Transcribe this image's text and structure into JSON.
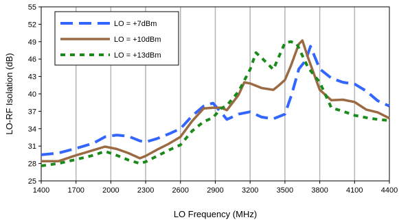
{
  "chart_data": {
    "type": "line",
    "xlabel": "LO Frequency (MHz)",
    "ylabel": "LO-RF Isolation (dB)",
    "xlim": [
      1400,
      4400
    ],
    "ylim": [
      25,
      55
    ],
    "xticks": [
      "1400",
      "1700",
      "2000",
      "2300",
      "2600",
      "2900",
      "3200",
      "3500",
      "3800",
      "4100",
      "4400"
    ],
    "yticks": [
      "25",
      "28",
      "31",
      "34",
      "37",
      "40",
      "43",
      "46",
      "49",
      "52",
      "55"
    ],
    "grid": "vertical",
    "legend_position": "top-left",
    "series": [
      {
        "name": "LO = +7dBm",
        "color": "#3366ff",
        "style": "long-dash",
        "x": [
          1400,
          1550,
          1700,
          1850,
          1950,
          2050,
          2150,
          2250,
          2300,
          2400,
          2500,
          2600,
          2700,
          2800,
          2880,
          2950,
          3000,
          3100,
          3200,
          3300,
          3400,
          3500,
          3560,
          3620,
          3680,
          3720,
          3800,
          3900,
          4000,
          4100,
          4200,
          4300,
          4400
        ],
        "y": [
          29.5,
          29.8,
          30.6,
          31.5,
          32.6,
          32.9,
          32.7,
          31.9,
          31.7,
          32.3,
          33.1,
          34.0,
          36.2,
          37.9,
          38.4,
          36.8,
          35.6,
          36.5,
          36.9,
          36.0,
          35.7,
          36.5,
          40.0,
          44.3,
          45.8,
          48.2,
          44.3,
          42.7,
          42.0,
          41.7,
          40.5,
          38.8,
          37.9
        ]
      },
      {
        "name": "LO = +10dBm",
        "color": "#9b6a43",
        "style": "solid",
        "x": [
          1400,
          1550,
          1700,
          1850,
          1950,
          2050,
          2150,
          2250,
          2300,
          2400,
          2500,
          2600,
          2700,
          2800,
          2880,
          2950,
          3000,
          3100,
          3150,
          3200,
          3300,
          3400,
          3450,
          3500,
          3550,
          3620,
          3650,
          3700,
          3800,
          3900,
          4000,
          4100,
          4200,
          4300,
          4400
        ],
        "y": [
          28.4,
          28.4,
          29.4,
          30.3,
          30.9,
          30.5,
          29.8,
          28.9,
          29.3,
          30.4,
          31.4,
          32.6,
          35.3,
          37.5,
          37.6,
          37.6,
          37.2,
          39.8,
          42.0,
          41.8,
          41.0,
          40.7,
          41.5,
          42.4,
          44.8,
          48.6,
          49.2,
          46.2,
          40.7,
          38.9,
          39.0,
          38.6,
          37.3,
          36.8,
          35.8
        ]
      },
      {
        "name": "LO = +13dBm",
        "color": "#1a8a1a",
        "style": "short-dash",
        "x": [
          1400,
          1550,
          1700,
          1850,
          1950,
          2050,
          2150,
          2250,
          2300,
          2400,
          2500,
          2600,
          2700,
          2800,
          2880,
          2950,
          3000,
          3100,
          3200,
          3250,
          3300,
          3400,
          3450,
          3500,
          3550,
          3600,
          3650,
          3700,
          3800,
          3900,
          4000,
          4100,
          4200,
          4300,
          4400
        ],
        "y": [
          27.6,
          28.0,
          28.7,
          29.4,
          30.1,
          29.4,
          28.6,
          28.0,
          28.3,
          29.3,
          30.3,
          31.2,
          33.6,
          35.2,
          35.9,
          37.5,
          38.0,
          40.4,
          44.2,
          47.1,
          46.2,
          44.2,
          46.5,
          48.8,
          49.0,
          48.7,
          46.6,
          44.5,
          42.0,
          37.6,
          37.0,
          36.3,
          35.9,
          35.6,
          35.4
        ]
      }
    ]
  }
}
